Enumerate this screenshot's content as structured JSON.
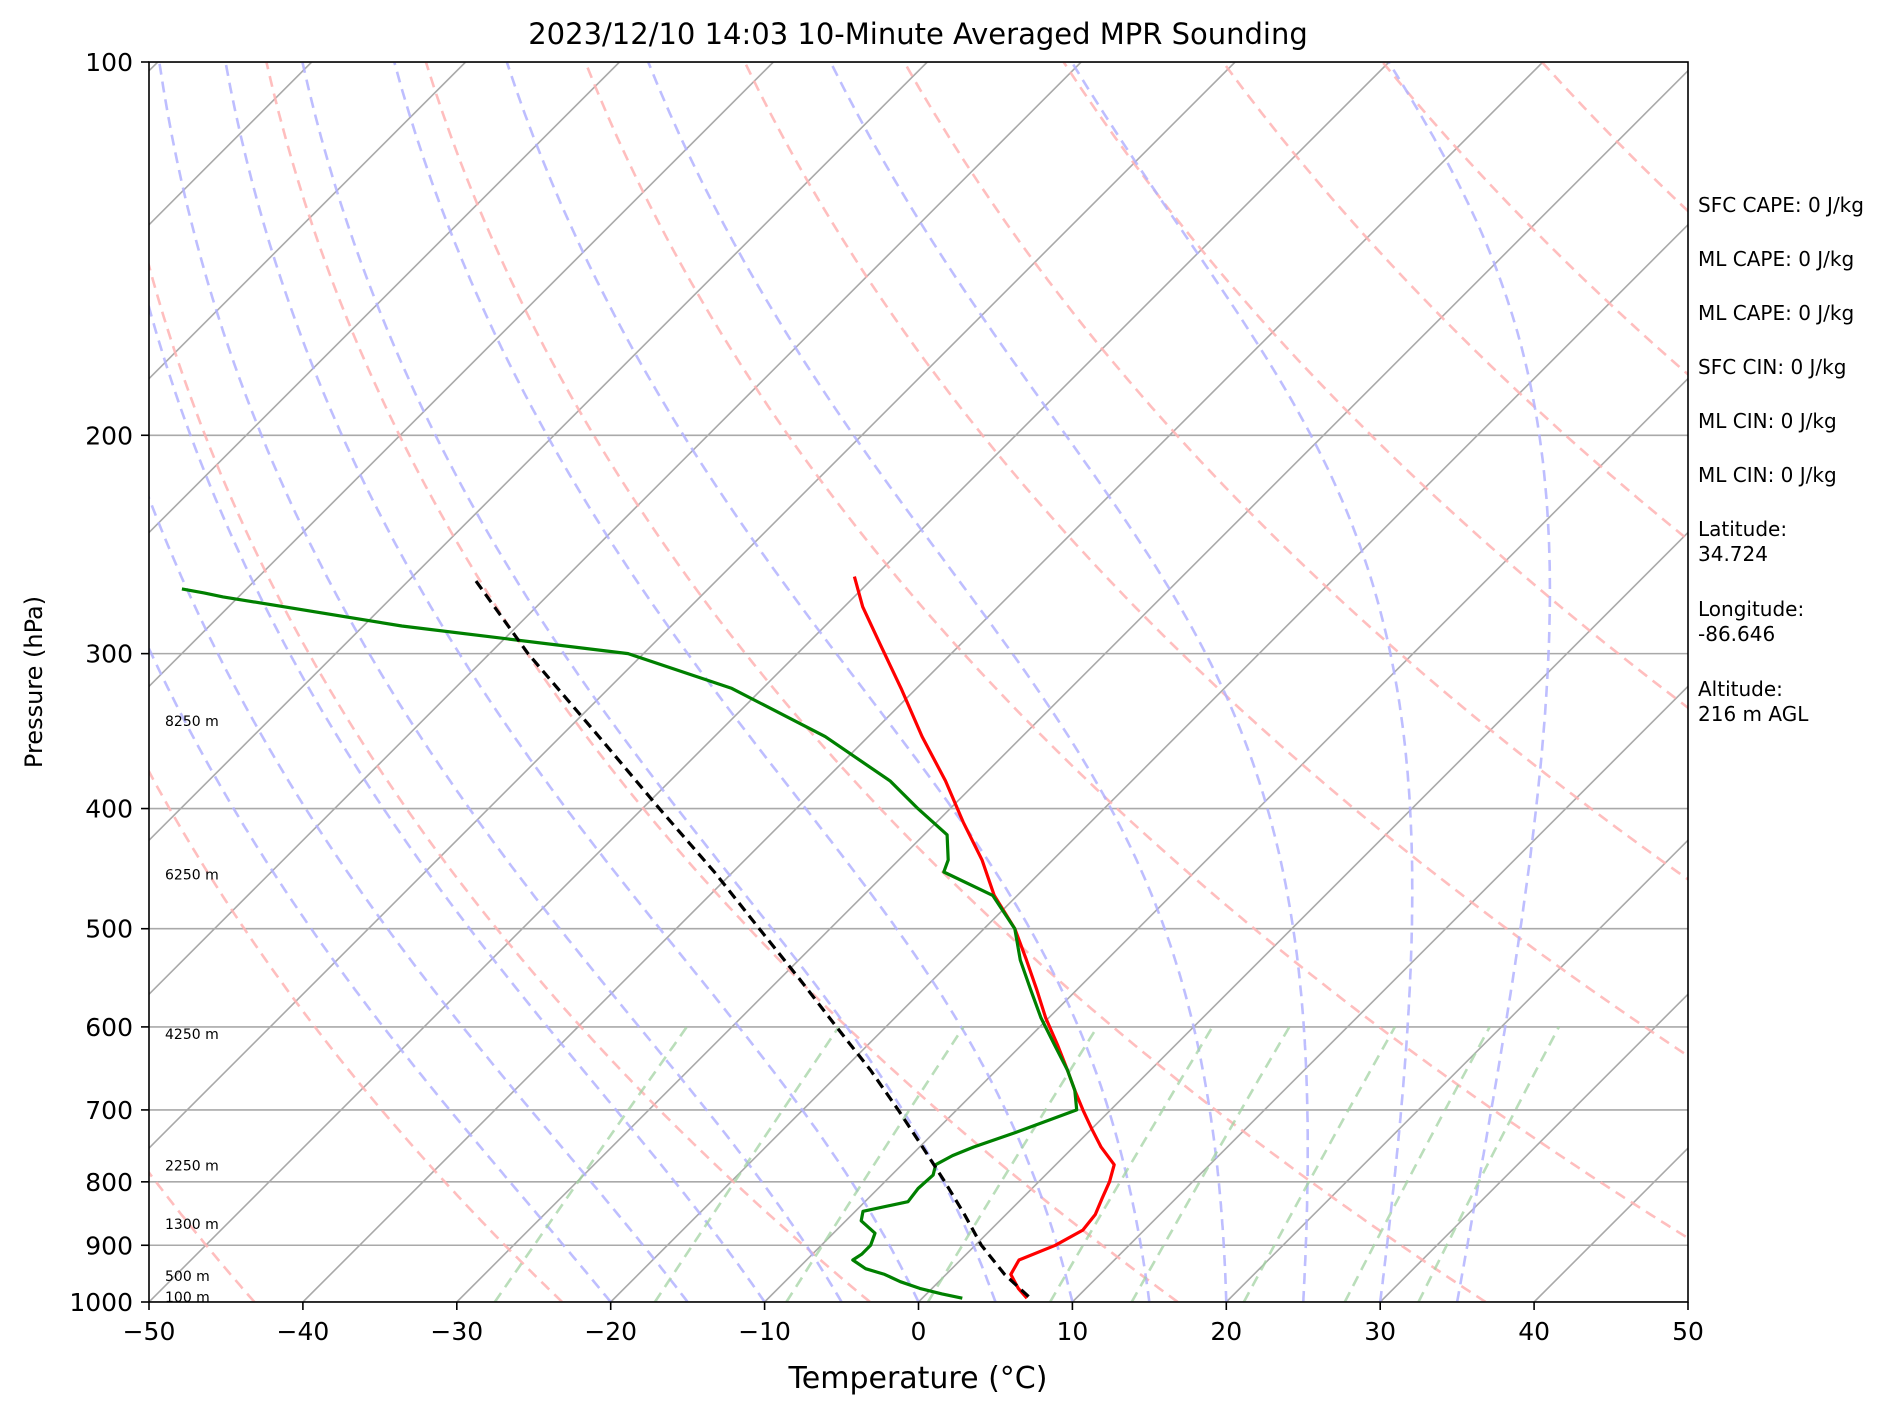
{
  "chart_data": {
    "type": "line",
    "title": "2023/12/10 14:03 10-Minute Averaged MPR Sounding",
    "xlabel": "Temperature (°C)",
    "ylabel": "Pressure (hPa)",
    "xlim": [
      -50,
      50
    ],
    "ylim": [
      1000,
      100
    ],
    "yscale": "log",
    "skew": true,
    "grid": true,
    "x_ticks": [
      -50,
      -40,
      -30,
      -20,
      -10,
      0,
      10,
      20,
      30,
      40,
      50
    ],
    "x_tick_labels": [
      "−50",
      "−40",
      "−30",
      "−20",
      "−10",
      "0",
      "10",
      "20",
      "30",
      "40",
      "50"
    ],
    "y_ticks": [
      100,
      200,
      300,
      400,
      500,
      600,
      700,
      800,
      900,
      1000
    ],
    "y_tick_labels": [
      "100",
      "200",
      "300",
      "400",
      "500",
      "600",
      "700",
      "800",
      "900",
      "1000"
    ],
    "height_labels": [
      {
        "p": 991,
        "label": "100 m"
      },
      {
        "p": 953,
        "label": "500 m"
      },
      {
        "p": 865,
        "label": "1300 m"
      },
      {
        "p": 776,
        "label": "2250 m"
      },
      {
        "p": 608,
        "label": "4250 m"
      },
      {
        "p": 452,
        "label": "6250 m"
      },
      {
        "p": 340,
        "label": "8250 m"
      }
    ],
    "info_text": [
      "SFC CAPE: 0 J/kg",
      "ML CAPE: 0 J/kg",
      "ML CAPE: 0 J/kg",
      "SFC CIN: 0 J/kg",
      "ML CIN: 0 J/kg",
      "ML CIN: 0 J/kg",
      "Latitude:\n34.724",
      "Longitude:\n-86.646",
      "Altitude:\n216 m AGL"
    ],
    "series": [
      {
        "key": "temperature",
        "color": "#ff0000",
        "p": [
          993,
          975,
          950,
          925,
          900,
          875,
          850,
          825,
          800,
          775,
          750,
          725,
          700,
          675,
          650,
          620,
          590,
          560,
          530,
          500,
          470,
          440,
          410,
          380,
          350,
          320,
          295,
          275,
          260
        ],
        "values": [
          6.8,
          5.6,
          4.2,
          3.8,
          5.2,
          6.0,
          5.8,
          5.2,
          4.6,
          3.8,
          1.8,
          0.0,
          -1.8,
          -3.6,
          -5.4,
          -7.7,
          -10.2,
          -12.6,
          -15.2,
          -18.0,
          -21.5,
          -24.6,
          -28.3,
          -32.1,
          -36.5,
          -41.0,
          -45.2,
          -48.8,
          -51.3
        ]
      },
      {
        "key": "dewpoint",
        "color": "#008000",
        "p": [
          993,
          985,
          975,
          963,
          950,
          940,
          925,
          915,
          900,
          880,
          860,
          845,
          830,
          810,
          790,
          775,
          762,
          750,
          730,
          700,
          675,
          650,
          620,
          590,
          560,
          530,
          500,
          470,
          450,
          440,
          420,
          400,
          380,
          350,
          320,
          300,
          285,
          270,
          268,
          266
        ],
        "values": [
          2.6,
          1.0,
          -0.8,
          -2.5,
          -4.0,
          -5.6,
          -7.0,
          -6.8,
          -6.8,
          -7.3,
          -9.0,
          -9.5,
          -7.2,
          -7.4,
          -7.3,
          -7.8,
          -7.3,
          -6.5,
          -4.7,
          -2.2,
          -3.6,
          -5.4,
          -7.9,
          -10.5,
          -13.0,
          -15.6,
          -18.0,
          -21.6,
          -26.3,
          -26.8,
          -28.5,
          -32.1,
          -35.7,
          -42.8,
          -52.0,
          -61.0,
          -77.5,
          -91.0,
          -92.5,
          -94.2
        ]
      },
      {
        "key": "parcel",
        "color": "#000000",
        "p": [
          990,
          950,
          900,
          850,
          800,
          750,
          700,
          650,
          600,
          550,
          500,
          450,
          400,
          350,
          300,
          260
        ],
        "values": [
          6.8,
          3.8,
          0.4,
          -2.7,
          -6.1,
          -9.8,
          -13.8,
          -18.2,
          -23.2,
          -28.6,
          -34.6,
          -41.2,
          -48.9,
          -57.5,
          -67.5,
          -76.1
        ]
      }
    ],
    "background_lines": {
      "dry_adiabats_K": [
        230,
        250,
        270,
        290,
        310,
        330,
        350,
        370,
        390,
        410,
        430,
        450,
        470,
        490,
        510
      ],
      "moist_adiabats_C": [
        -20,
        -15,
        -10,
        -5,
        0,
        5,
        10,
        15,
        20,
        25,
        30,
        35
      ],
      "mixing_ratios_gkg": [
        0.4,
        1,
        2,
        4,
        7,
        10,
        16,
        24,
        32
      ]
    },
    "colors": {
      "isotherm": "#a9a9a9",
      "isobar": "#a9a9a9",
      "dry_adiabat": "#ffb3b3",
      "moist_adiabat": "#b3b3ff",
      "mixing_ratio": "#a3d3a3"
    }
  }
}
